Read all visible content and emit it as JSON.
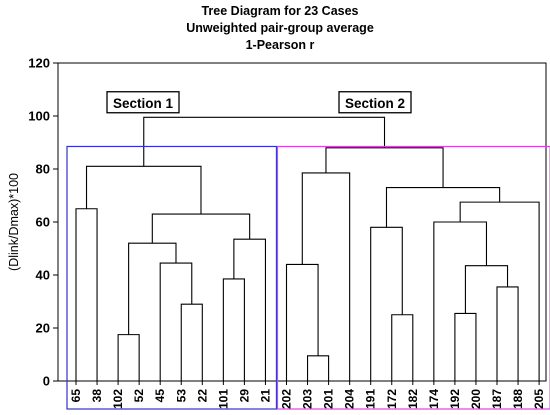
{
  "chart_data": {
    "type": "dendrogram",
    "title": [
      "Tree Diagram for 23 Cases",
      "Unweighted pair-group average",
      "1-Pearson r"
    ],
    "ylabel": "(Dlink/Dmax)*100",
    "xlabel": "",
    "ylim": [
      0,
      120
    ],
    "yticks": [
      0,
      20,
      40,
      60,
      80,
      100,
      120
    ],
    "leaves": [
      "65",
      "38",
      "102",
      "52",
      "45",
      "53",
      "22",
      "101",
      "29",
      "21",
      "202",
      "203",
      "201",
      "204",
      "191",
      "172",
      "182",
      "174",
      "192",
      "200",
      "187",
      "188",
      "205"
    ],
    "merges": [
      {
        "id": "m1",
        "a": "L:102",
        "b": "L:52",
        "height": 17.5
      },
      {
        "id": "m2",
        "a": "L:53",
        "b": "L:22",
        "height": 29
      },
      {
        "id": "m3",
        "a": "L:45",
        "b": "m2",
        "height": 44.5
      },
      {
        "id": "m4",
        "a": "m1",
        "b": "m3",
        "height": 52
      },
      {
        "id": "m5",
        "a": "L:101",
        "b": "L:29",
        "height": 38.5
      },
      {
        "id": "m6",
        "a": "m5",
        "b": "L:21",
        "height": 53.5
      },
      {
        "id": "m7",
        "a": "m4",
        "b": "m6",
        "height": 63
      },
      {
        "id": "m8",
        "a": "L:65",
        "b": "L:38",
        "height": 65
      },
      {
        "id": "m9",
        "a": "m8",
        "b": "m7",
        "height": 81
      },
      {
        "id": "m10",
        "a": "L:203",
        "b": "L:201",
        "height": 9.5
      },
      {
        "id": "m11",
        "a": "L:202",
        "b": "m10",
        "height": 44
      },
      {
        "id": "m12",
        "a": "m11",
        "b": "L:204",
        "height": 78.5
      },
      {
        "id": "m13",
        "a": "L:172",
        "b": "L:182",
        "height": 25
      },
      {
        "id": "m14",
        "a": "L:191",
        "b": "m13",
        "height": 58
      },
      {
        "id": "m15",
        "a": "L:192",
        "b": "L:200",
        "height": 25.5
      },
      {
        "id": "m16",
        "a": "L:187",
        "b": "L:188",
        "height": 35.5
      },
      {
        "id": "m17",
        "a": "m15",
        "b": "m16",
        "height": 43.5
      },
      {
        "id": "m18",
        "a": "L:174",
        "b": "m17",
        "height": 60
      },
      {
        "id": "m19",
        "a": "m18",
        "b": "L:205",
        "height": 67.5
      },
      {
        "id": "m20",
        "a": "m14",
        "b": "m19",
        "height": 73
      },
      {
        "id": "m21",
        "a": "m12",
        "b": "m20",
        "height": 88
      },
      {
        "id": "m22",
        "a": "m9",
        "b": "m21",
        "height": 99.5
      }
    ],
    "sections": [
      {
        "label": "Section 1",
        "first": "65",
        "last": "21",
        "color": "#3333cc"
      },
      {
        "label": "Section 2",
        "first": "202",
        "last": "205",
        "color": "#e040e0"
      }
    ]
  }
}
